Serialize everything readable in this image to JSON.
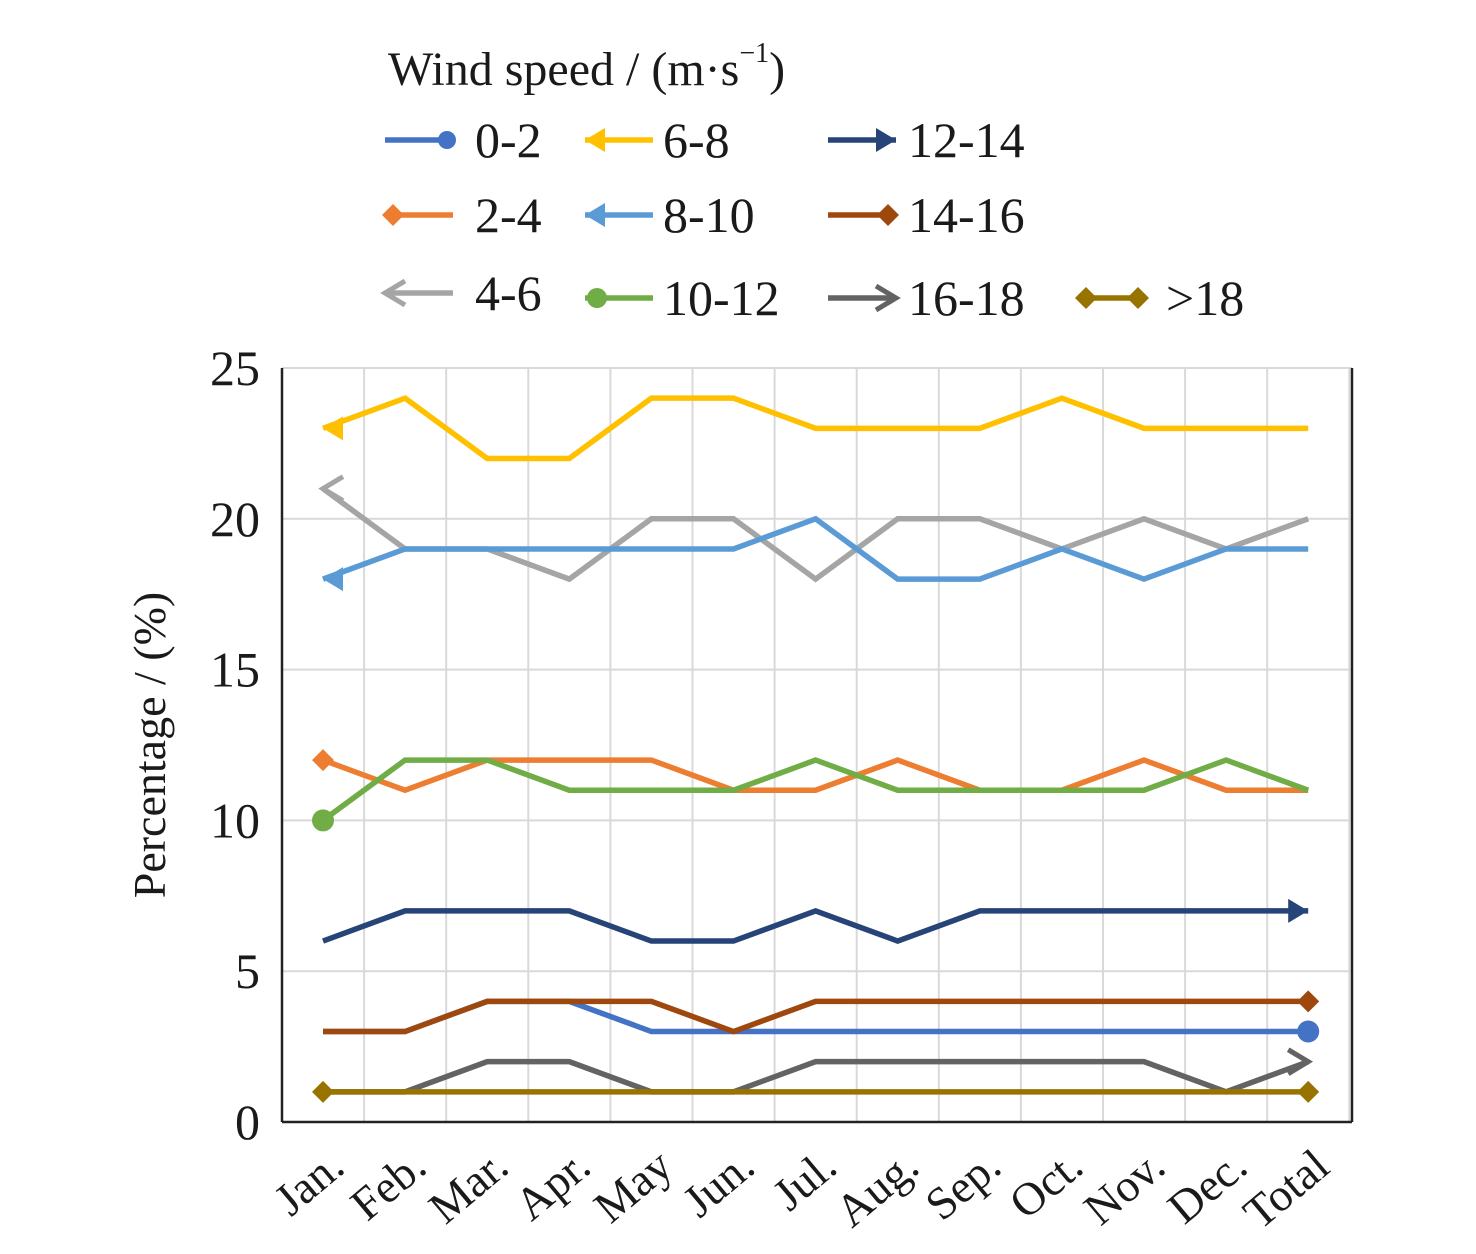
{
  "chart_data": {
    "type": "line",
    "legend_title": {
      "main": "Wind speed / (m·s",
      "sup": "−1",
      "close": ")"
    },
    "legend_placement": "top",
    "ylabel": "Percentage / (%)",
    "xlabel": "",
    "ylim": [
      0,
      25
    ],
    "yticks": [
      0,
      5,
      10,
      15,
      20,
      25
    ],
    "grid": true,
    "categories": [
      "Jan.",
      "Feb.",
      "Mar.",
      "Apr.",
      "May",
      "Jun.",
      "Jul.",
      "Aug.",
      "Sep.",
      "Oct.",
      "Nov.",
      "Dec.",
      "Total"
    ],
    "series": [
      {
        "name": "0-2",
        "color": "#4472c4",
        "marker": "circle",
        "values": [
          3,
          3,
          4,
          4,
          3,
          3,
          3,
          3,
          3,
          3,
          3,
          3,
          3
        ]
      },
      {
        "name": "2-4",
        "color": "#ed7d31",
        "marker": "diamond",
        "values": [
          12,
          11,
          12,
          12,
          12,
          11,
          11,
          12,
          11,
          11,
          12,
          11,
          11
        ]
      },
      {
        "name": "4-6",
        "color": "#a5a5a5",
        "marker": "open-arrow",
        "values": [
          21,
          19,
          19,
          18,
          20,
          20,
          18,
          20,
          20,
          19,
          20,
          19,
          20
        ]
      },
      {
        "name": "6-8",
        "color": "#ffc000",
        "marker": "arrow-left",
        "values": [
          23,
          24,
          22,
          22,
          24,
          24,
          23,
          23,
          23,
          24,
          23,
          23,
          23
        ]
      },
      {
        "name": "8-10",
        "color": "#5b9bd5",
        "marker": "arrow-left",
        "values": [
          18,
          19,
          19,
          19,
          19,
          19,
          20,
          18,
          18,
          19,
          18,
          19,
          19
        ]
      },
      {
        "name": "10-12",
        "color": "#70ad47",
        "marker": "circle-start",
        "values": [
          10,
          12,
          12,
          11,
          11,
          11,
          12,
          11,
          11,
          11,
          11,
          12,
          11
        ]
      },
      {
        "name": "12-14",
        "color": "#264478",
        "marker": "arrow-right",
        "values": [
          6,
          7,
          7,
          7,
          6,
          6,
          7,
          6,
          7,
          7,
          7,
          7,
          7
        ]
      },
      {
        "name": "14-16",
        "color": "#9e480e",
        "marker": "diamond",
        "values": [
          3,
          3,
          4,
          4,
          4,
          3,
          4,
          4,
          4,
          4,
          4,
          4,
          4
        ]
      },
      {
        "name": "16-18",
        "color": "#636363",
        "marker": "double-arrow",
        "values": [
          1,
          1,
          2,
          2,
          1,
          1,
          2,
          2,
          2,
          2,
          2,
          1,
          2
        ]
      },
      {
        "name": ">18",
        "color": "#997300",
        "marker": "diamond-both",
        "values": [
          1,
          1,
          1,
          1,
          1,
          1,
          1,
          1,
          1,
          1,
          1,
          1,
          1
        ]
      }
    ]
  }
}
